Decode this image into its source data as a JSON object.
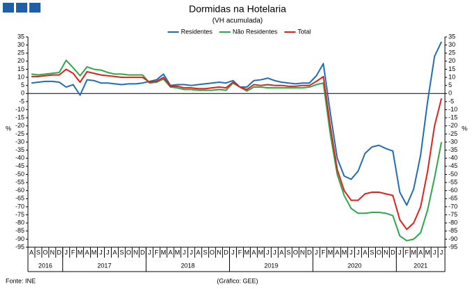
{
  "chart_data": {
    "type": "line",
    "title": "Dormidas na Hotelaria",
    "subtitle": "(VH acumulada)",
    "ylabel": "%",
    "source": "Fonte: INE",
    "credit": "(Gráfico: GEE)",
    "categories": [
      "A",
      "S",
      "O",
      "N",
      "D",
      "J",
      "F",
      "M",
      "A",
      "M",
      "J",
      "J",
      "A",
      "S",
      "O",
      "N",
      "D",
      "J",
      "F",
      "M",
      "A",
      "M",
      "J",
      "J",
      "A",
      "S",
      "O",
      "N",
      "D",
      "J",
      "F",
      "M",
      "A",
      "M",
      "J",
      "J",
      "A",
      "S",
      "O",
      "N",
      "D",
      "J",
      "F",
      "M",
      "A",
      "M",
      "J",
      "J",
      "A",
      "S",
      "O",
      "N",
      "D",
      "J",
      "F",
      "M",
      "A",
      "M",
      "J",
      "J"
    ],
    "years": [
      "2016",
      "2017",
      "2018",
      "2019",
      "2020",
      "2021"
    ],
    "ylim": [
      -95,
      35
    ],
    "yticks": [
      35,
      30,
      25,
      20,
      15,
      10,
      5,
      0,
      -5,
      -10,
      -15,
      -20,
      -25,
      -30,
      -35,
      -40,
      -45,
      -50,
      -55,
      -60,
      -65,
      -70,
      -75,
      -80,
      -85,
      -90,
      -95
    ],
    "legend": "top",
    "series": [
      {
        "name": "Residentes",
        "color": "#1f6eb4",
        "values": [
          6.5,
          7,
          7.5,
          7.5,
          7,
          4,
          5.5,
          -1,
          8.5,
          8,
          6.5,
          6.5,
          6,
          5.5,
          6,
          6,
          6.5,
          7.5,
          8.5,
          12,
          5,
          5.5,
          5.5,
          5,
          5.5,
          6,
          6.5,
          7,
          6.5,
          8,
          4,
          4,
          8,
          8.5,
          9.5,
          8,
          7,
          6.5,
          6,
          6.5,
          6.5,
          11,
          18.5,
          -12,
          -40,
          -51,
          -53,
          -48,
          -37,
          -33,
          -32,
          -34,
          -35.5,
          -61,
          -69,
          -59,
          -38,
          -5,
          23,
          32
        ]
      },
      {
        "name": "Não Residentes",
        "color": "#2ca84a",
        "values": [
          12,
          11.5,
          12,
          12.5,
          13,
          20.5,
          16,
          11,
          16.5,
          15,
          14.5,
          13,
          12,
          12,
          11.5,
          11.5,
          11.5,
          6.5,
          7,
          9,
          4,
          3.5,
          2.5,
          2.5,
          2,
          2,
          2,
          2.5,
          2,
          6.5,
          4,
          1.5,
          4,
          4,
          3.5,
          3.5,
          3.5,
          3.5,
          3.5,
          3.5,
          4,
          5.5,
          6.5,
          -25,
          -50,
          -63,
          -71,
          -74,
          -74,
          -73.5,
          -73.5,
          -74,
          -75.5,
          -88,
          -91,
          -90,
          -86,
          -72,
          -52,
          -30
        ]
      },
      {
        "name": "Total",
        "color": "#e0201b",
        "values": [
          10.5,
          10.5,
          11,
          11.5,
          11.5,
          15,
          12.5,
          7,
          13.5,
          12.5,
          11.5,
          11,
          10.5,
          10,
          10,
          10,
          10,
          7,
          7.5,
          10,
          4.5,
          4.5,
          3.5,
          3.5,
          3,
          3,
          3.5,
          4,
          3.5,
          7,
          4,
          2.5,
          5.5,
          5,
          5.5,
          5,
          5,
          4.5,
          4.5,
          5,
          5,
          7.5,
          10.5,
          -20,
          -47,
          -60,
          -66,
          -66,
          -62,
          -61,
          -61,
          -62,
          -63,
          -78,
          -84,
          -80,
          -70,
          -48,
          -20,
          -3
        ]
      }
    ]
  }
}
